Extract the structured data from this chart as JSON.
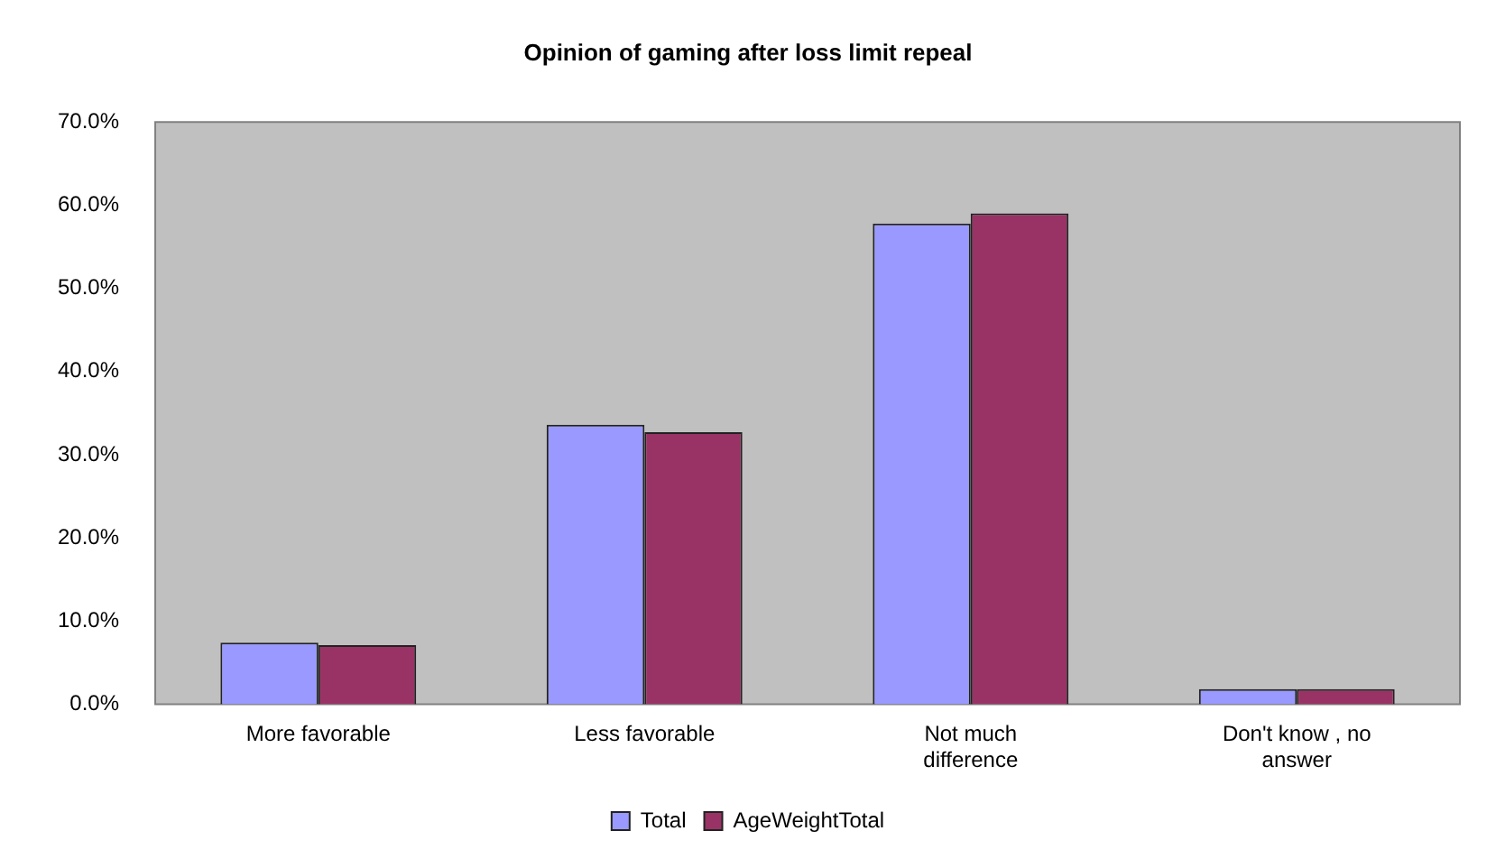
{
  "chart_data": {
    "type": "bar",
    "title": "Opinion of gaming after loss limit repeal",
    "categories": [
      "More favorable",
      "Less favorable",
      "Not much difference",
      "Don't know , no answer"
    ],
    "series": [
      {
        "name": "Total",
        "color": "#9999ff",
        "values": [
          7.4,
          33.6,
          57.8,
          1.8
        ]
      },
      {
        "name": "AgeWeightTotal",
        "color": "#993366",
        "values": [
          7.1,
          32.7,
          59.0,
          1.8
        ]
      }
    ],
    "ylim": [
      0,
      70
    ],
    "yticks": [
      {
        "value": 0,
        "label": "0.0%"
      },
      {
        "value": 10,
        "label": "10.0%"
      },
      {
        "value": 20,
        "label": "20.0%"
      },
      {
        "value": 30,
        "label": "30.0%"
      },
      {
        "value": 40,
        "label": "40.0%"
      },
      {
        "value": 50,
        "label": "50.0%"
      },
      {
        "value": 60,
        "label": "60.0%"
      },
      {
        "value": 70,
        "label": "70.0%"
      }
    ],
    "grid": false,
    "legend": "bottom"
  }
}
